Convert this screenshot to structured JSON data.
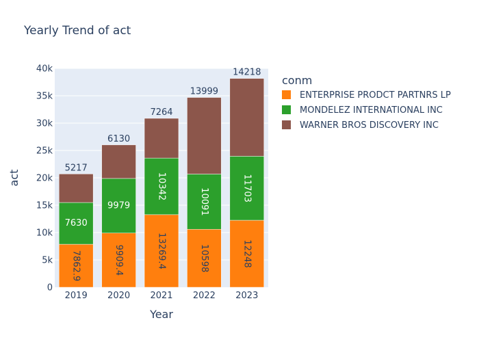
{
  "chart_data": {
    "type": "bar",
    "stacked": true,
    "title": "Yearly Trend of act",
    "xlabel": "Year",
    "ylabel": "act",
    "categories": [
      "2019",
      "2020",
      "2021",
      "2022",
      "2023"
    ],
    "ylim": [
      0,
      40000
    ],
    "yticks": [
      0,
      5000,
      10000,
      15000,
      20000,
      25000,
      30000,
      35000,
      40000
    ],
    "ytick_labels": [
      "0",
      "5k",
      "10k",
      "15k",
      "20k",
      "25k",
      "30k",
      "35k",
      "40k"
    ],
    "legend_title": "conm",
    "legend_position": "top-right",
    "series": [
      {
        "name": "ENTERPRISE PRODCT PARTNRS LP",
        "color": "#ff7f0e",
        "values": [
          7862.9,
          9909.4,
          13269.4,
          10598,
          12248
        ],
        "labels": [
          "7862.9",
          "9909.4",
          "13269.4",
          "10598",
          "12248"
        ],
        "label_color": "#2a3f5f"
      },
      {
        "name": "MONDELEZ INTERNATIONAL INC",
        "color": "#2ca02c",
        "values": [
          7630,
          9979,
          10342,
          10091,
          11703
        ],
        "labels": [
          "7630",
          "9979",
          "10342",
          "10091",
          "11703"
        ],
        "label_color": "#ffffff"
      },
      {
        "name": "WARNER BROS DISCOVERY INC",
        "color": "#8c564b",
        "values": [
          5217,
          6130,
          7264,
          13999,
          14218
        ],
        "labels": [
          "5217",
          "6130",
          "7264",
          "13999",
          "14218"
        ],
        "label_color": "#2a3f5f"
      }
    ],
    "plot_bg": "#e5ecf6",
    "grid_color": "#ffffff"
  }
}
